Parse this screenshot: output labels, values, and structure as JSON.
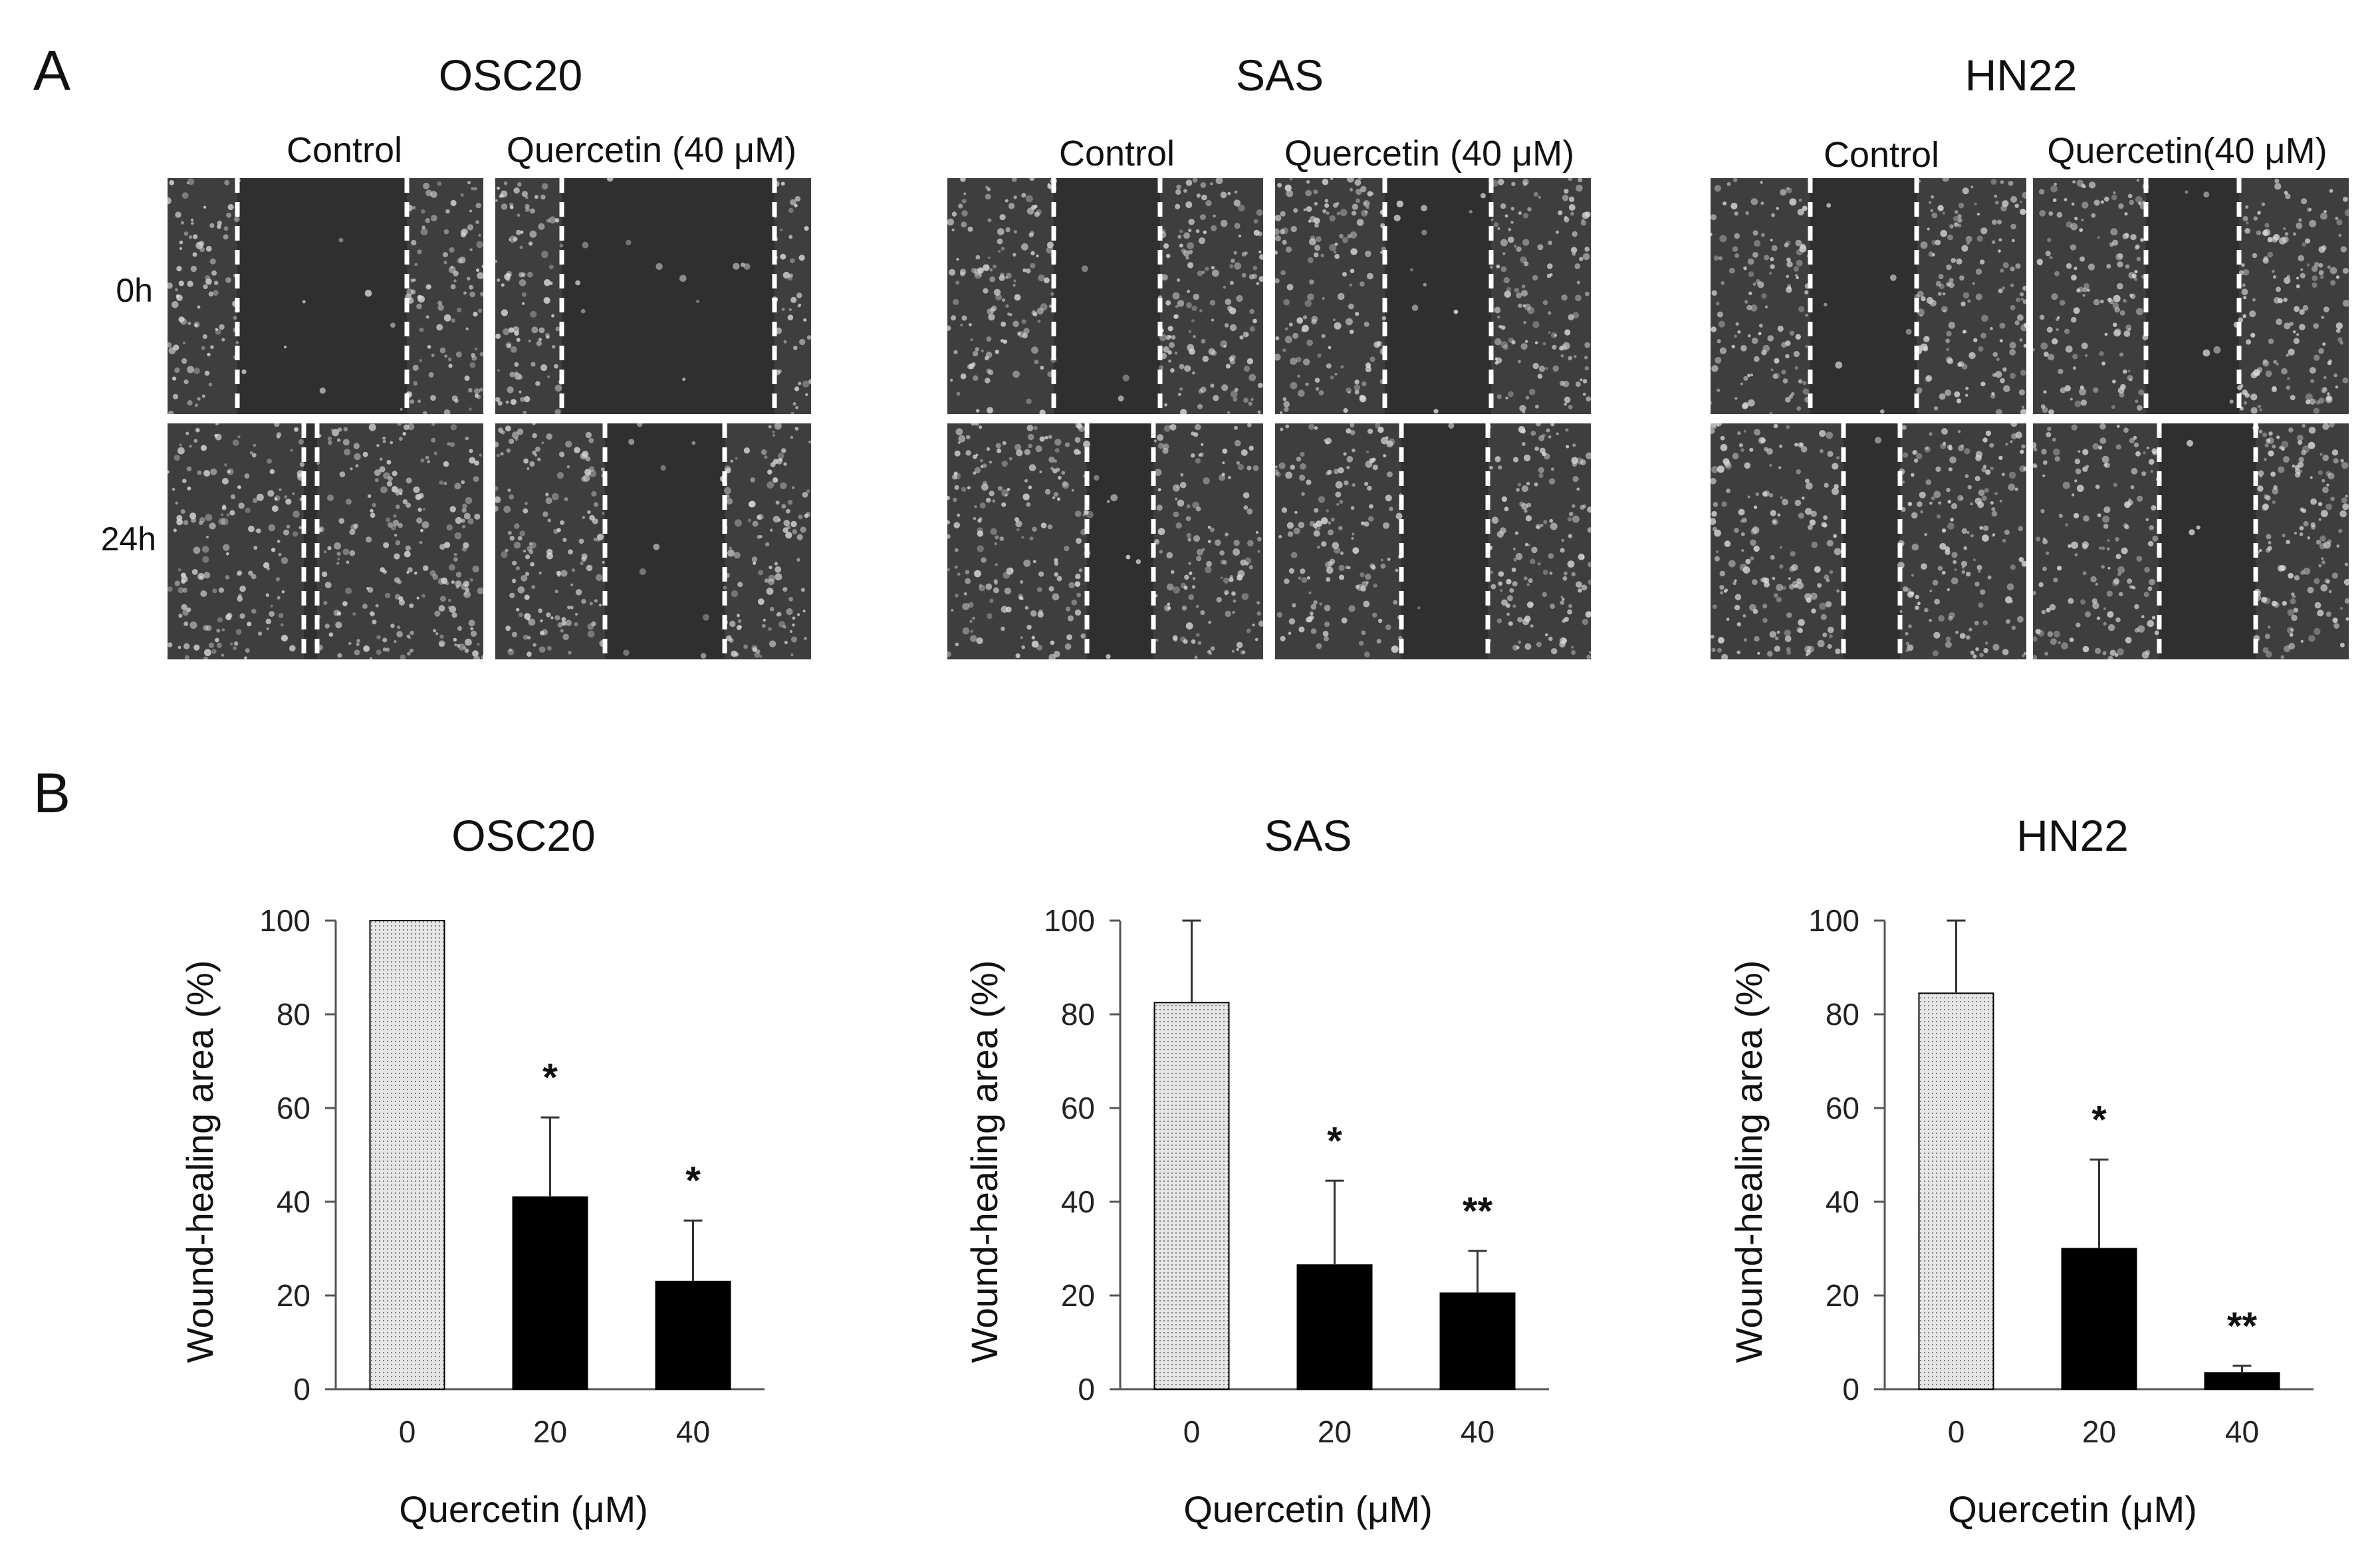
{
  "panel_a": {
    "letter": "A",
    "row_labels": [
      "0h",
      "24h"
    ],
    "cells": [
      {
        "title": "OSC20",
        "control_label": "Control",
        "treatment_label": "Quercetin (40 μM)"
      },
      {
        "title": "SAS",
        "control_label": "Control",
        "treatment_label": "Quercetin (40 μM)"
      },
      {
        "title": "HN22",
        "control_label": "Control",
        "treatment_label": "Quercetin(40 μM)"
      }
    ],
    "image_description": "phase-contrast micrographs of scratch wound with dashed white boundary lines",
    "colors": {
      "micrograph_bg": "#3e3e3e",
      "cell_speckle": "#d8d8d8",
      "boundary_line": "#ffffff"
    }
  },
  "panel_b": {
    "letter": "B",
    "colors": {
      "control_fill": "#e6e6e6",
      "treated_fill": "#000000",
      "axis": "#555555"
    }
  },
  "chart_data": [
    {
      "type": "bar",
      "title": "OSC20",
      "xlabel": "Quercetin (μM)",
      "ylabel": "Wound-healing area (%)",
      "categories": [
        "0",
        "20",
        "40"
      ],
      "values": [
        100,
        41,
        23
      ],
      "error_upper": [
        0,
        17,
        13
      ],
      "annotations": [
        "",
        "*",
        "*"
      ],
      "ylim": [
        0,
        100
      ],
      "yticks": [
        "0",
        "20",
        "40",
        "60",
        "80",
        "100"
      ]
    },
    {
      "type": "bar",
      "title": "SAS",
      "xlabel": "Quercetin (μM)",
      "ylabel": "Wound-healing area (%)",
      "categories": [
        "0",
        "20",
        "40"
      ],
      "values": [
        82.5,
        26.5,
        20.5
      ],
      "error_upper": [
        17.5,
        18,
        9
      ],
      "annotations": [
        "",
        "*",
        "**"
      ],
      "ylim": [
        0,
        100
      ],
      "yticks": [
        "0",
        "20",
        "40",
        "60",
        "80",
        "100"
      ]
    },
    {
      "type": "bar",
      "title": "HN22",
      "xlabel": "Quercetin (μM)",
      "ylabel": "Wound-healing area (%)",
      "categories": [
        "0",
        "20",
        "40"
      ],
      "values": [
        84.5,
        30,
        3.5
      ],
      "error_upper": [
        15.5,
        19,
        1.5
      ],
      "annotations": [
        "",
        "*",
        "**"
      ],
      "ylim": [
        0,
        100
      ],
      "yticks": [
        "0",
        "20",
        "40",
        "60",
        "80",
        "100"
      ]
    }
  ]
}
